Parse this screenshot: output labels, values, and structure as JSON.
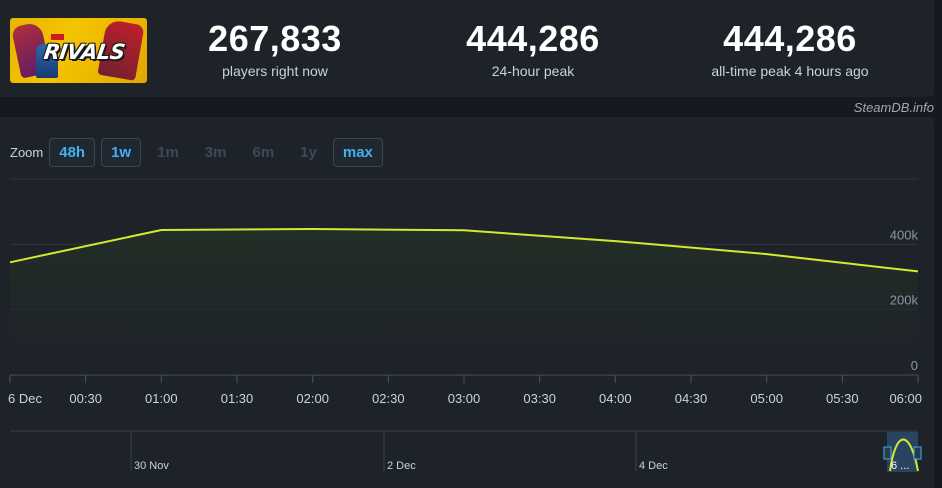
{
  "stats": {
    "players_now": {
      "value": "267,833",
      "label": "players right now"
    },
    "peak_24h": {
      "value": "444,286",
      "label": "24-hour peak"
    },
    "peak_all_time": {
      "value": "444,286",
      "label": "all-time peak 4 hours ago"
    }
  },
  "game": {
    "logo_text": "RIVALS",
    "icon": "marvel-rivals-logo"
  },
  "watermark": "SteamDB.info",
  "zoom": {
    "label": "Zoom",
    "options": [
      {
        "label": "48h",
        "active": true
      },
      {
        "label": "1w",
        "active": true
      },
      {
        "label": "1m",
        "active": false
      },
      {
        "label": "3m",
        "active": false
      },
      {
        "label": "6m",
        "active": false
      },
      {
        "label": "1y",
        "active": false
      },
      {
        "label": "max",
        "active": true
      }
    ]
  },
  "colors": {
    "line": "#d4ea2e",
    "active_zoom": "#44aff0",
    "background": "#1e2329"
  },
  "chart_data": {
    "type": "line",
    "title": "",
    "xlabel": "",
    "ylabel": "",
    "x_ticks": [
      "6 Dec",
      "00:30",
      "01:00",
      "01:30",
      "02:00",
      "02:30",
      "03:00",
      "03:30",
      "04:00",
      "04:30",
      "05:00",
      "05:30",
      "06:00"
    ],
    "y_ticks": [
      "0",
      "200k",
      "400k"
    ],
    "ylim": [
      0,
      600000
    ],
    "grid": true,
    "series": [
      {
        "x": [
          "00:00",
          "01:00",
          "02:00",
          "03:00",
          "04:00",
          "05:00",
          "06:00"
        ],
        "values": [
          345000,
          444000,
          447000,
          443000,
          410000,
          370000,
          317000
        ]
      }
    ],
    "navigator": {
      "labels": [
        "30 Nov",
        "2 Dec",
        "4 Dec"
      ],
      "handle_label": "6 ..."
    }
  }
}
